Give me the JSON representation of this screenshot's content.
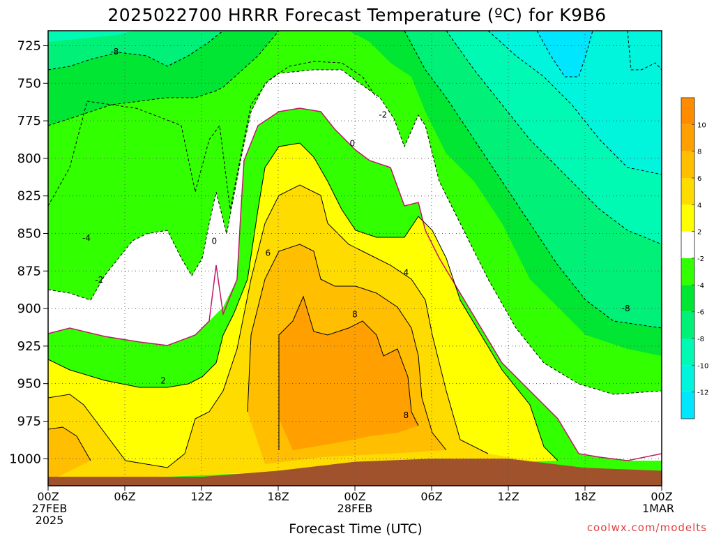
{
  "chart_data": {
    "type": "heatmap",
    "title": "2025022700 HRRR Forecast Temperature (ºC) for K9B6",
    "xlabel": "Forecast Time (UTC)",
    "ylabel": "",
    "credit": "coolwx.com/modelts",
    "y_scale": "pressure (inverted)",
    "ylim": [
      1018,
      715
    ],
    "xlim_hours": [
      0,
      48
    ],
    "y_ticks": [
      725,
      750,
      775,
      800,
      825,
      850,
      875,
      900,
      925,
      950,
      975,
      1000
    ],
    "x_ticks": [
      {
        "hour": 0,
        "labels": [
          "00Z",
          "27FEB",
          "2025"
        ]
      },
      {
        "hour": 6,
        "labels": [
          "06Z"
        ]
      },
      {
        "hour": 12,
        "labels": [
          "12Z"
        ]
      },
      {
        "hour": 18,
        "labels": [
          "18Z"
        ]
      },
      {
        "hour": 24,
        "labels": [
          "00Z",
          "28FEB"
        ]
      },
      {
        "hour": 30,
        "labels": [
          "06Z"
        ]
      },
      {
        "hour": 36,
        "labels": [
          "12Z"
        ]
      },
      {
        "hour": 42,
        "labels": [
          "18Z"
        ]
      },
      {
        "hour": 48,
        "labels": [
          "00Z",
          "1MAR"
        ]
      }
    ],
    "grid": true,
    "colorbar": {
      "placement": "right",
      "levels": [
        10,
        8,
        6,
        4,
        2,
        -2,
        -4,
        -6,
        -8,
        -10,
        -12
      ],
      "bins": [
        {
          "from": 10,
          "to": 12,
          "color": "#ff8c00"
        },
        {
          "from": 8,
          "to": 10,
          "color": "#ffa000"
        },
        {
          "from": 6,
          "to": 8,
          "color": "#ffbe00"
        },
        {
          "from": 4,
          "to": 6,
          "color": "#ffdc00"
        },
        {
          "from": 2,
          "to": 4,
          "color": "#ffff00"
        },
        {
          "from": -2,
          "to": 2,
          "color": "#ffffff"
        },
        {
          "from": -4,
          "to": -2,
          "color": "#32ff00"
        },
        {
          "from": -6,
          "to": -4,
          "color": "#00e632"
        },
        {
          "from": -8,
          "to": -6,
          "color": "#00f078"
        },
        {
          "from": -10,
          "to": -8,
          "color": "#00fab4"
        },
        {
          "from": -12,
          "to": -10,
          "color": "#00f5dc"
        },
        {
          "from": -14,
          "to": -12,
          "color": "#00e6ff"
        }
      ]
    },
    "ground_color": "#a0522d",
    "ground_top_pressure": [
      {
        "hour": 0,
        "p": 1012
      },
      {
        "hour": 12,
        "p": 1012
      },
      {
        "hour": 18,
        "p": 1008
      },
      {
        "hour": 24,
        "p": 1002
      },
      {
        "hour": 30,
        "p": 1000
      },
      {
        "hour": 36,
        "p": 1000
      },
      {
        "hour": 42,
        "p": 1006
      },
      {
        "hour": 48,
        "p": 1008
      }
    ],
    "contour_labels": [
      {
        "text": "-8",
        "hour": 5.2,
        "p": 729
      },
      {
        "text": "-4",
        "hour": 3.0,
        "p": 853
      },
      {
        "text": "-2",
        "hour": 4.0,
        "p": 881
      },
      {
        "text": "0",
        "hour": 13.0,
        "p": 855
      },
      {
        "text": "6",
        "hour": 17.2,
        "p": 863
      },
      {
        "text": "-2",
        "hour": 26.2,
        "p": 771
      },
      {
        "text": "0",
        "hour": 23.8,
        "p": 790
      },
      {
        "text": "4",
        "hour": 28.0,
        "p": 876
      },
      {
        "text": "8",
        "hour": 24.0,
        "p": 904
      },
      {
        "text": "2",
        "hour": 9.0,
        "p": 948
      },
      {
        "text": "8",
        "hour": 28.0,
        "p": 971
      },
      {
        "text": "-8",
        "hour": 45.2,
        "p": 900
      }
    ]
  }
}
